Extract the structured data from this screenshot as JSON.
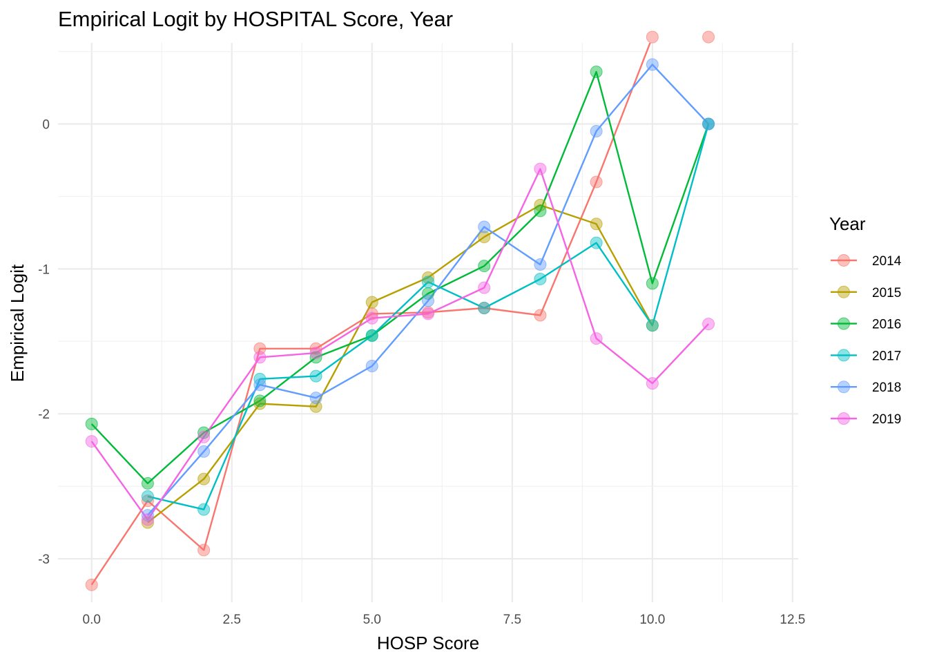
{
  "chart_data": {
    "type": "line",
    "title": "Empirical Logit by HOSPITAL Score, Year",
    "xlabel": "HOSP Score",
    "ylabel": "Empirical Logit",
    "xlim": [
      -0.6,
      12.6
    ],
    "ylim": [
      -3.3,
      0.56
    ],
    "x_ticks": [
      0.0,
      2.5,
      5.0,
      7.5,
      10.0,
      12.5
    ],
    "x_tick_labels": [
      "0.0",
      "2.5",
      "5.0",
      "7.5",
      "10.0",
      "12.5"
    ],
    "y_ticks": [
      0,
      -1,
      -2,
      -3
    ],
    "y_tick_labels": [
      "0",
      "-1",
      "-2",
      "-3"
    ],
    "grid": true,
    "legend_title": "Year",
    "legend_position": "right",
    "series": [
      {
        "name": "2014",
        "color": "#F8766D",
        "x": [
          0,
          1,
          2,
          3,
          4,
          5,
          6,
          7,
          8,
          9,
          10,
          11
        ],
        "y": [
          -3.18,
          -2.6,
          -2.94,
          -1.55,
          -1.55,
          -1.31,
          -1.3,
          -1.27,
          -1.32,
          -0.4,
          0.6,
          0.6
        ]
      },
      {
        "name": "2015",
        "color": "#B79F00",
        "x": [
          1,
          2,
          3,
          4,
          5,
          6,
          7,
          8,
          9,
          10
        ],
        "y": [
          -2.75,
          -2.45,
          -1.93,
          -1.95,
          -1.23,
          -1.06,
          -0.78,
          -0.56,
          -0.69,
          -1.39
        ]
      },
      {
        "name": "2016",
        "color": "#00BA38",
        "x": [
          0,
          1,
          2,
          3,
          4,
          5,
          6,
          7,
          8,
          9,
          10,
          11
        ],
        "y": [
          -2.07,
          -2.48,
          -2.13,
          -1.91,
          -1.61,
          -1.46,
          -1.17,
          -0.98,
          -0.6,
          0.36,
          -1.1,
          0.0
        ]
      },
      {
        "name": "2017",
        "color": "#00BFC4",
        "x": [
          1,
          2,
          3,
          4,
          5,
          6,
          7,
          8,
          9,
          10,
          11
        ],
        "y": [
          -2.57,
          -2.66,
          -1.76,
          -1.74,
          -1.46,
          -1.09,
          -1.27,
          -1.07,
          -0.82,
          -1.39,
          0.0
        ]
      },
      {
        "name": "2018",
        "color": "#619CFF",
        "x": [
          1,
          2,
          3,
          4,
          5,
          6,
          7,
          8,
          9,
          10,
          11
        ],
        "y": [
          -2.7,
          -2.26,
          -1.8,
          -1.89,
          -1.67,
          -1.22,
          -0.71,
          -0.97,
          -0.05,
          0.41,
          0.0
        ]
      },
      {
        "name": "2019",
        "color": "#F564E3",
        "x": [
          0,
          1,
          2,
          3,
          4,
          5,
          6,
          7,
          8,
          9,
          10,
          11
        ],
        "y": [
          -2.19,
          -2.73,
          -2.16,
          -1.61,
          -1.58,
          -1.34,
          -1.31,
          -1.13,
          -0.31,
          -1.48,
          -1.79,
          -1.38
        ]
      }
    ]
  }
}
